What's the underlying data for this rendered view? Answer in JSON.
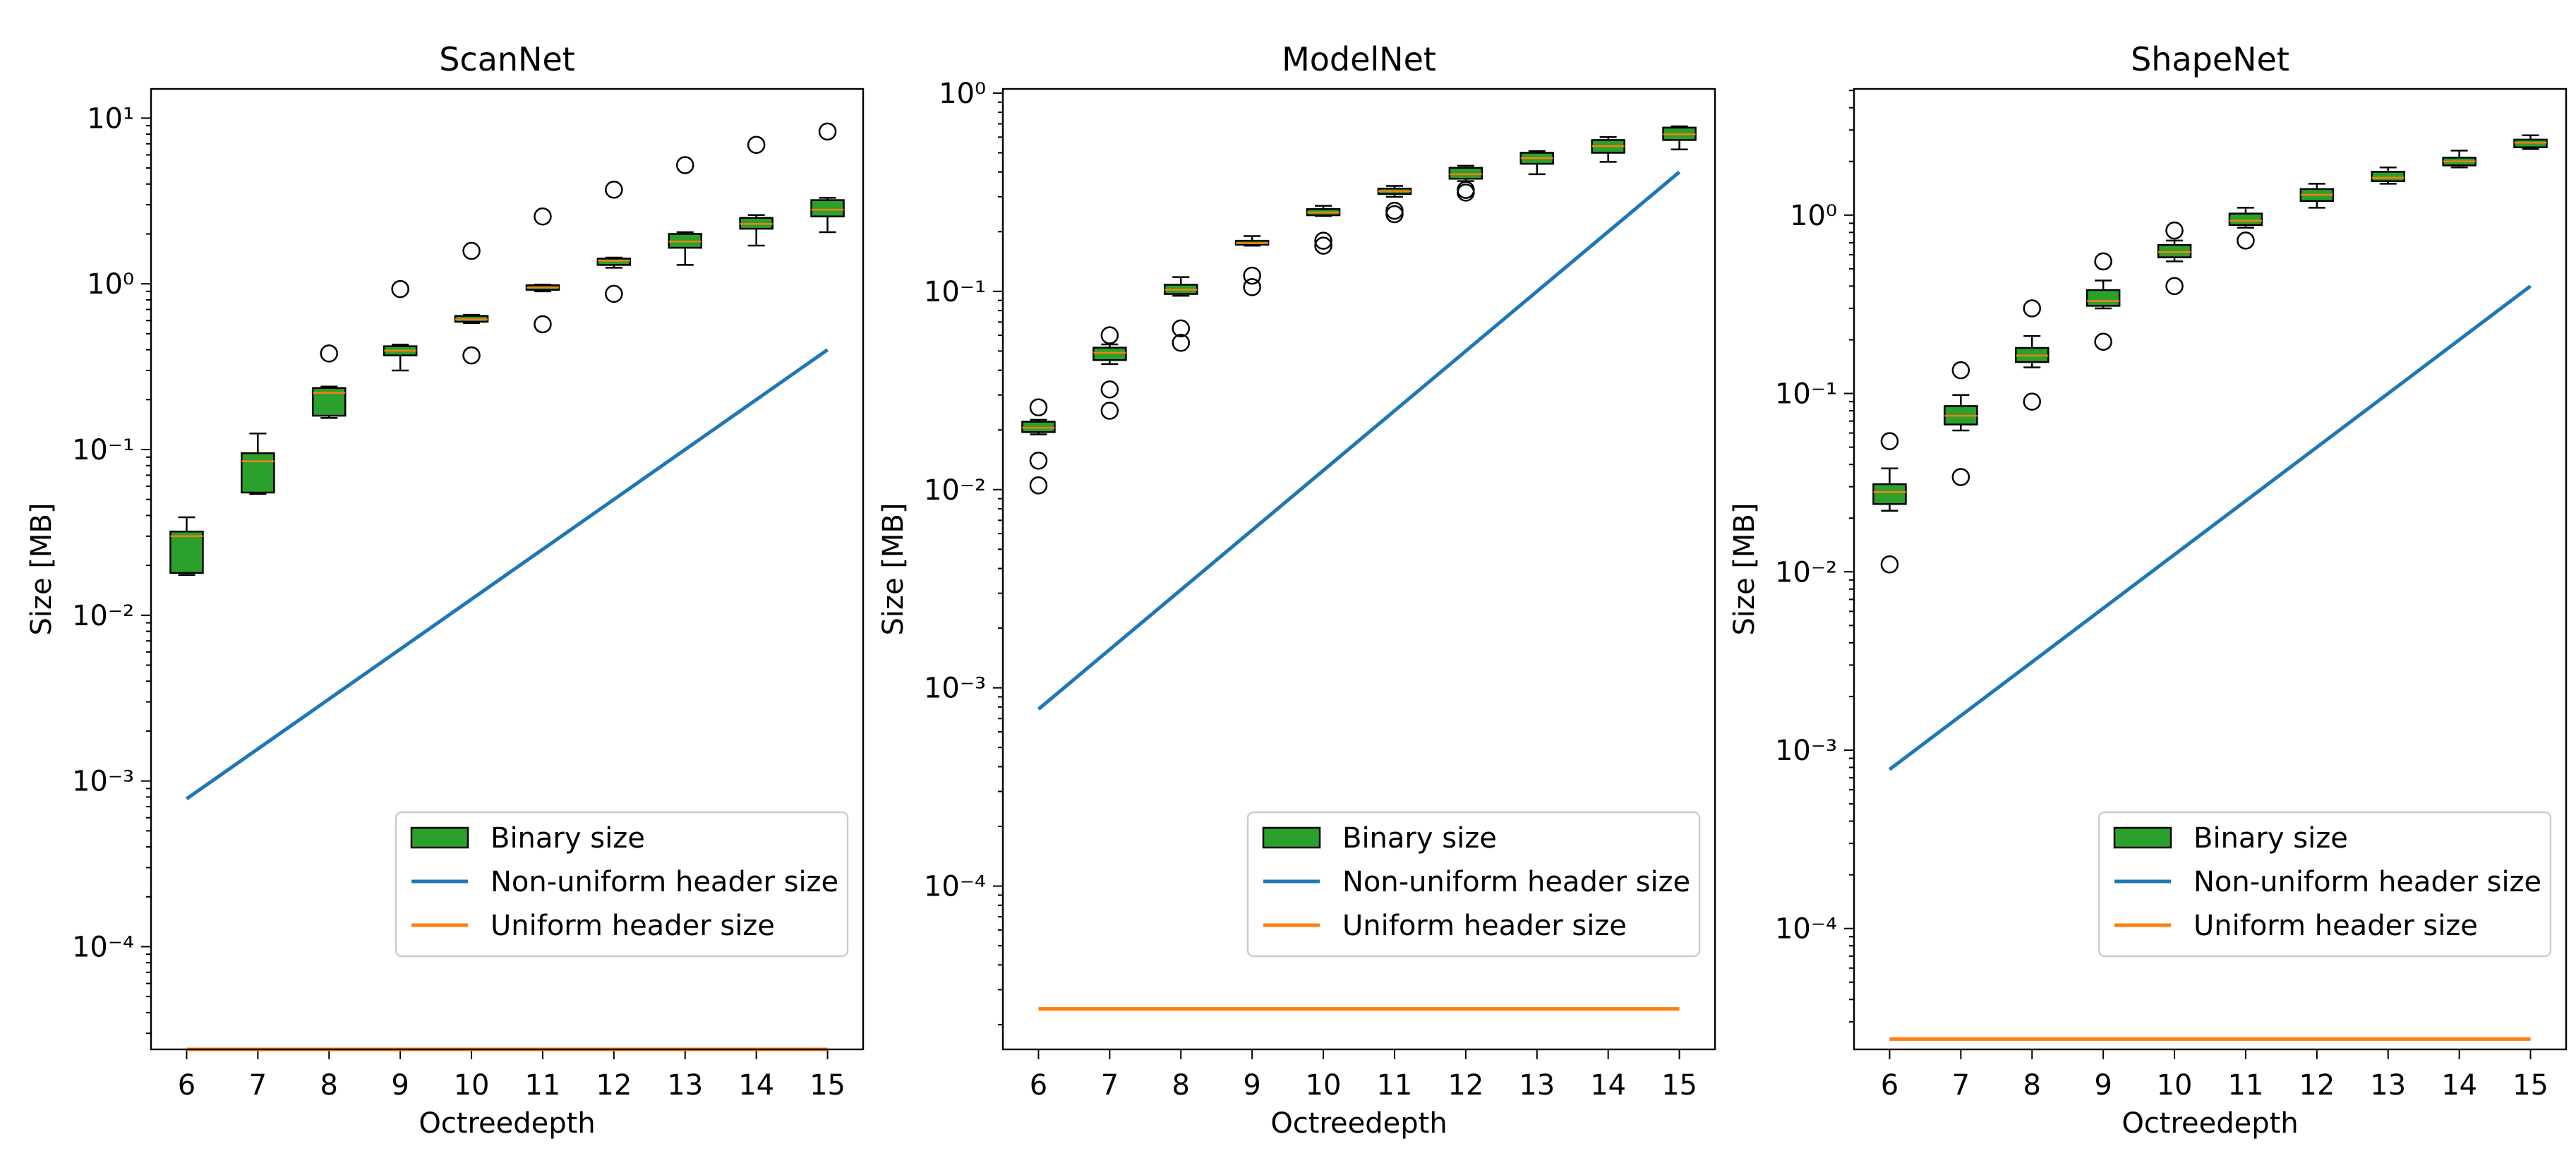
{
  "figure": {
    "type": "box-and-line",
    "panel_count": 3
  },
  "legend_entries": [
    "Binary size",
    "Non-uniform header size",
    "Uniform header size"
  ],
  "colors": {
    "binary_fill": "#2ca02c",
    "median": "#ff7f0e",
    "nonuniform_line": "#1f77b4",
    "uniform_line": "#ff7f0e",
    "box_edge": "#000000"
  },
  "chart_data": [
    {
      "type": "box",
      "title": "ScanNet",
      "xlabel": "Octreedepth",
      "ylabel": "Size [MB]",
      "yscale": "log",
      "ylim": [
        2.4e-05,
        15
      ],
      "yticks": [
        0.0001,
        0.001,
        0.01,
        0.1,
        1,
        10
      ],
      "ytick_labels": [
        "10⁻⁴",
        "10⁻³",
        "10⁻²",
        "10⁻¹",
        "10⁰",
        "10¹"
      ],
      "x": [
        6,
        7,
        8,
        9,
        10,
        11,
        12,
        13,
        14,
        15
      ],
      "boxes": [
        {
          "depth": 6,
          "whislo": 0.0175,
          "q1": 0.018,
          "med": 0.03,
          "q3": 0.032,
          "whishi": 0.039,
          "fliers": []
        },
        {
          "depth": 7,
          "whislo": 0.054,
          "q1": 0.055,
          "med": 0.085,
          "q3": 0.095,
          "whishi": 0.125,
          "fliers": []
        },
        {
          "depth": 8,
          "whislo": 0.155,
          "q1": 0.16,
          "med": 0.22,
          "q3": 0.235,
          "whishi": 0.24,
          "fliers": [
            0.38
          ]
        },
        {
          "depth": 9,
          "whislo": 0.3,
          "q1": 0.37,
          "med": 0.395,
          "q3": 0.42,
          "whishi": 0.43,
          "fliers": [
            0.93
          ]
        },
        {
          "depth": 10,
          "whislo": 0.58,
          "q1": 0.59,
          "med": 0.61,
          "q3": 0.64,
          "whishi": 0.65,
          "fliers": [
            0.37,
            1.58
          ]
        },
        {
          "depth": 11,
          "whislo": 0.9,
          "q1": 0.92,
          "med": 0.95,
          "q3": 0.98,
          "whishi": 0.99,
          "fliers": [
            0.57,
            2.55
          ]
        },
        {
          "depth": 12,
          "whislo": 1.25,
          "q1": 1.3,
          "med": 1.38,
          "q3": 1.42,
          "whishi": 1.44,
          "fliers": [
            0.87,
            3.7
          ]
        },
        {
          "depth": 13,
          "whislo": 1.3,
          "q1": 1.65,
          "med": 1.8,
          "q3": 2.0,
          "whishi": 2.05,
          "fliers": [
            5.2
          ]
        },
        {
          "depth": 14,
          "whislo": 1.7,
          "q1": 2.15,
          "med": 2.3,
          "q3": 2.5,
          "whishi": 2.6,
          "fliers": [
            6.9
          ]
        },
        {
          "depth": 15,
          "whislo": 2.05,
          "q1": 2.55,
          "med": 2.8,
          "q3": 3.2,
          "whishi": 3.3,
          "fliers": [
            8.3
          ]
        }
      ],
      "series": [
        {
          "name": "Non-uniform header size",
          "x": [
            6,
            15
          ],
          "values": [
            0.00078,
            0.4
          ]
        },
        {
          "name": "Uniform header size",
          "x": [
            6,
            15
          ],
          "values": [
            2.4e-05,
            2.4e-05
          ]
        }
      ],
      "legend": "lower-right"
    },
    {
      "type": "box",
      "title": "ModelNet",
      "xlabel": "Octreedepth",
      "ylabel": "Size [MB]",
      "yscale": "log",
      "ylim": [
        1.5e-05,
        1.05
      ],
      "yticks": [
        0.0001,
        0.001,
        0.01,
        0.1,
        1
      ],
      "ytick_labels": [
        "10⁻⁴",
        "10⁻³",
        "10⁻²",
        "10⁻¹",
        "10⁰"
      ],
      "x": [
        6,
        7,
        8,
        9,
        10,
        11,
        12,
        13,
        14,
        15
      ],
      "boxes": [
        {
          "depth": 6,
          "whislo": 0.019,
          "q1": 0.0195,
          "med": 0.0205,
          "q3": 0.022,
          "whishi": 0.0225,
          "fliers": [
            0.0105,
            0.014,
            0.026
          ]
        },
        {
          "depth": 7,
          "whislo": 0.043,
          "q1": 0.045,
          "med": 0.049,
          "q3": 0.052,
          "whishi": 0.054,
          "fliers": [
            0.025,
            0.032,
            0.06
          ]
        },
        {
          "depth": 8,
          "whislo": 0.095,
          "q1": 0.097,
          "med": 0.102,
          "q3": 0.108,
          "whishi": 0.118,
          "fliers": [
            0.055,
            0.065
          ]
        },
        {
          "depth": 9,
          "whislo": 0.17,
          "q1": 0.172,
          "med": 0.175,
          "q3": 0.18,
          "whishi": 0.19,
          "fliers": [
            0.105,
            0.12
          ]
        },
        {
          "depth": 10,
          "whislo": 0.24,
          "q1": 0.242,
          "med": 0.25,
          "q3": 0.26,
          "whishi": 0.27,
          "fliers": [
            0.17,
            0.18
          ]
        },
        {
          "depth": 11,
          "whislo": 0.3,
          "q1": 0.31,
          "med": 0.32,
          "q3": 0.33,
          "whishi": 0.34,
          "fliers": [
            0.245,
            0.255
          ]
        },
        {
          "depth": 12,
          "whislo": 0.36,
          "q1": 0.37,
          "med": 0.39,
          "q3": 0.42,
          "whishi": 0.43,
          "fliers": [
            0.315,
            0.325
          ]
        },
        {
          "depth": 13,
          "whislo": 0.39,
          "q1": 0.44,
          "med": 0.47,
          "q3": 0.5,
          "whishi": 0.51,
          "fliers": []
        },
        {
          "depth": 14,
          "whislo": 0.45,
          "q1": 0.5,
          "med": 0.54,
          "q3": 0.58,
          "whishi": 0.6,
          "fliers": []
        },
        {
          "depth": 15,
          "whislo": 0.52,
          "q1": 0.58,
          "med": 0.62,
          "q3": 0.67,
          "whishi": 0.68,
          "fliers": []
        }
      ],
      "series": [
        {
          "name": "Non-uniform header size",
          "x": [
            6,
            15
          ],
          "values": [
            0.00078,
            0.4
          ]
        },
        {
          "name": "Uniform header size",
          "x": [
            6,
            15
          ],
          "values": [
            2.4e-05,
            2.4e-05
          ]
        }
      ],
      "legend": "lower-right"
    },
    {
      "type": "box",
      "title": "ShapeNet",
      "xlabel": "Octreedepth",
      "ylabel": "Size [MB]",
      "yscale": "log",
      "ylim": [
        2.1e-05,
        5.1
      ],
      "yticks": [
        0.0001,
        0.001,
        0.01,
        0.1,
        1
      ],
      "ytick_labels": [
        "10⁻⁴",
        "10⁻³",
        "10⁻²",
        "10⁻¹",
        "10⁰"
      ],
      "x": [
        6,
        7,
        8,
        9,
        10,
        11,
        12,
        13,
        14,
        15
      ],
      "boxes": [
        {
          "depth": 6,
          "whislo": 0.022,
          "q1": 0.024,
          "med": 0.028,
          "q3": 0.031,
          "whishi": 0.038,
          "fliers": [
            0.011,
            0.054
          ]
        },
        {
          "depth": 7,
          "whislo": 0.062,
          "q1": 0.067,
          "med": 0.075,
          "q3": 0.085,
          "whishi": 0.098,
          "fliers": [
            0.034,
            0.135
          ]
        },
        {
          "depth": 8,
          "whislo": 0.14,
          "q1": 0.15,
          "med": 0.163,
          "q3": 0.18,
          "whishi": 0.21,
          "fliers": [
            0.09,
            0.3
          ]
        },
        {
          "depth": 9,
          "whislo": 0.3,
          "q1": 0.31,
          "med": 0.33,
          "q3": 0.38,
          "whishi": 0.43,
          "fliers": [
            0.195,
            0.55
          ]
        },
        {
          "depth": 10,
          "whislo": 0.55,
          "q1": 0.58,
          "med": 0.62,
          "q3": 0.68,
          "whishi": 0.72,
          "fliers": [
            0.4,
            0.82
          ]
        },
        {
          "depth": 11,
          "whislo": 0.85,
          "q1": 0.88,
          "med": 0.93,
          "q3": 1.02,
          "whishi": 1.1,
          "fliers": [
            0.72
          ]
        },
        {
          "depth": 12,
          "whislo": 1.1,
          "q1": 1.2,
          "med": 1.3,
          "q3": 1.4,
          "whishi": 1.5,
          "fliers": []
        },
        {
          "depth": 13,
          "whislo": 1.5,
          "q1": 1.55,
          "med": 1.62,
          "q3": 1.75,
          "whishi": 1.85,
          "fliers": []
        },
        {
          "depth": 14,
          "whislo": 1.85,
          "q1": 1.9,
          "med": 2.0,
          "q3": 2.1,
          "whishi": 2.3,
          "fliers": []
        },
        {
          "depth": 15,
          "whislo": 2.35,
          "q1": 2.4,
          "med": 2.55,
          "q3": 2.65,
          "whishi": 2.8,
          "fliers": []
        }
      ],
      "series": [
        {
          "name": "Non-uniform header size",
          "x": [
            6,
            15
          ],
          "values": [
            0.00078,
            0.4
          ]
        },
        {
          "name": "Uniform header size",
          "x": [
            6,
            15
          ],
          "values": [
            2.4e-05,
            2.4e-05
          ]
        }
      ],
      "legend": "lower-right"
    }
  ]
}
